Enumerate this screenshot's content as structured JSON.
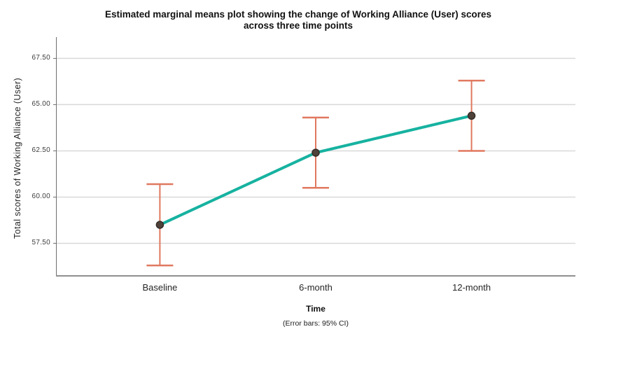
{
  "chart_data": {
    "type": "line",
    "title": "Estimated marginal means plot showing the change of Working Alliance (User) scores across three time points",
    "title_line1": "Estimated marginal means plot showing the change of Working Alliance (User) scores",
    "title_line2": "across three time points",
    "xlabel": "Time",
    "ylabel": "Total scores of Working Alliance (User)",
    "footnote": "(Error bars: 95% CI)",
    "categories": [
      "Baseline",
      "6-month",
      "12-month"
    ],
    "series": [
      {
        "name": "Estimated marginal means",
        "values": [
          58.5,
          62.4,
          64.4
        ],
        "ci_upper": [
          60.7,
          64.3,
          66.3
        ],
        "ci_lower": [
          56.3,
          60.5,
          62.5
        ]
      }
    ],
    "error_bars": "95% CI",
    "yticks": [
      {
        "label": "67.50",
        "value": 67.5
      },
      {
        "label": "65.00",
        "value": 65.0
      },
      {
        "label": "62.50",
        "value": 62.5
      },
      {
        "label": "60.00",
        "value": 60.0
      },
      {
        "label": "57.50",
        "value": 57.5
      }
    ],
    "ylim": [
      55.7,
      68.5
    ],
    "grid": "horizontal",
    "legend": "none",
    "colors": {
      "line": "#16b2a0",
      "error_bar": "#e0785f",
      "marker_fill": "#4f423b",
      "marker_stroke": "#332d28",
      "grid": "#d9d9d9",
      "axis": "#6e6e6e",
      "baseline": "#8f8f8f",
      "text": "#262626",
      "background": "#ffffff"
    }
  }
}
